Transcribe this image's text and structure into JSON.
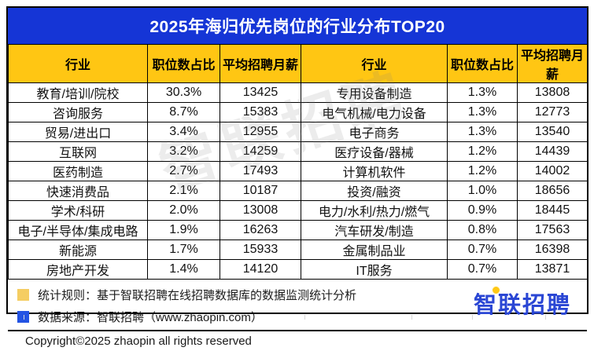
{
  "title": "2025年海归优先岗位的行业分布TOP20",
  "table": {
    "headers": [
      "行业",
      "职位数占比",
      "平均招聘月薪",
      "行业",
      "职位数占比",
      "平均招聘月薪"
    ]
  },
  "chart_data": {
    "type": "table",
    "title": "2025年海归优先岗位的行业分布TOP20",
    "columns": [
      "行业",
      "职位数占比",
      "平均招聘月薪"
    ],
    "rows": [
      [
        "教育/培训/院校",
        "30.3%",
        13425
      ],
      [
        "咨询服务",
        "8.7%",
        15383
      ],
      [
        "贸易/进出口",
        "3.4%",
        12955
      ],
      [
        "互联网",
        "3.2%",
        14259
      ],
      [
        "医药制造",
        "2.7%",
        17493
      ],
      [
        "快速消费品",
        "2.1%",
        10187
      ],
      [
        "学术/科研",
        "2.0%",
        13008
      ],
      [
        "电子/半导体/集成电路",
        "1.9%",
        16263
      ],
      [
        "新能源",
        "1.7%",
        15933
      ],
      [
        "房地产开发",
        "1.4%",
        14120
      ],
      [
        "专用设备制造",
        "1.3%",
        13808
      ],
      [
        "电气机械/电力设备",
        "1.3%",
        12773
      ],
      [
        "电子商务",
        "1.3%",
        13540
      ],
      [
        "医疗设备/器械",
        "1.2%",
        14439
      ],
      [
        "计算机软件",
        "1.2%",
        14002
      ],
      [
        "投资/融资",
        "1.0%",
        18656
      ],
      [
        "电力/水利/热力/燃气",
        "0.9%",
        18445
      ],
      [
        "汽车研发/制造",
        "0.8%",
        17563
      ],
      [
        "金属制品业",
        "0.7%",
        16398
      ],
      [
        "IT服务",
        "0.7%",
        13871
      ]
    ]
  },
  "footer": {
    "note1": "统计规则：基于智联招聘在线招聘数据库的数据监测统计分析",
    "note2": "数据来源：智联招聘（www.zhaopin.com）",
    "copyright": "Copyright©2025 zhaopin all rights reserved",
    "logo_text": "智联招聘"
  },
  "watermark": "智联招聘",
  "colors": {
    "title_bg": "#1535d6",
    "title_text": "#ffffff",
    "header_bg": "#ffc613",
    "border": "#000000",
    "legend_yellow": "#f5cd62",
    "legend_blue": "#2353e3",
    "logo_blue": "#2a46d4",
    "logo_dot_yellow": "#ffc814"
  }
}
